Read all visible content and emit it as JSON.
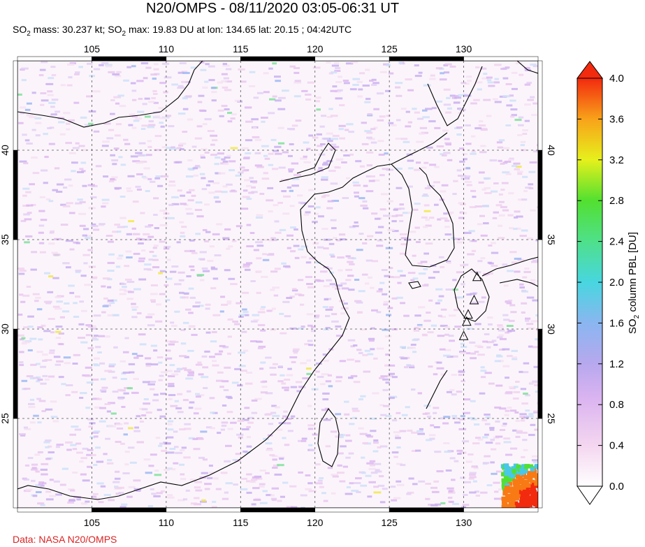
{
  "title": "N20/OMPS - 08/11/2020 03:05-06:31 UT",
  "subtitle": {
    "p1": "SO",
    "sub1": "2",
    "p2": " mass: 30.237 kt; SO",
    "sub2": "2",
    "p3": " max: 19.83 DU at lon: 134.65 lat: 20.15 ; 04:42UTC"
  },
  "credit": "Data: NASA N20/OMPS",
  "colorbar": {
    "label_main": "SO",
    "label_sub": "2",
    "label_rest": " column PBL [DU]",
    "ticks": [
      "0.0",
      "0.4",
      "0.8",
      "1.2",
      "1.6",
      "2.0",
      "2.4",
      "2.8",
      "3.2",
      "3.6",
      "4.0"
    ]
  },
  "chart_data": {
    "type": "heatmap",
    "title": "N20/OMPS - 08/11/2020 03:05-06:31 UT",
    "x_ticks": [
      "105",
      "110",
      "115",
      "120",
      "125",
      "130"
    ],
    "y_ticks": [
      "40",
      "35",
      "30",
      "25"
    ],
    "xlim": [
      100,
      135
    ],
    "ylim": [
      20,
      45
    ],
    "grid": true,
    "colorbar_range": [
      0.0,
      4.0
    ],
    "colorbar_label": "SO2 column PBL [DU]",
    "max_value_du": 19.83,
    "max_location": {
      "lon": 134.65,
      "lat": 20.15
    },
    "so2_mass_kt": 30.237,
    "max_time_utc": "04:42UTC",
    "volcano_markers": [
      {
        "lon": 130.9,
        "lat": 32.9
      },
      {
        "lon": 130.7,
        "lat": 31.6
      },
      {
        "lon": 130.3,
        "lat": 30.8
      },
      {
        "lon": 130.2,
        "lat": 30.4
      },
      {
        "lon": 130.0,
        "lat": 29.6
      }
    ],
    "high_value_region": {
      "lon_range": [
        132.5,
        135
      ],
      "lat_range": [
        20,
        22.5
      ],
      "value_du": ">4.0"
    }
  }
}
